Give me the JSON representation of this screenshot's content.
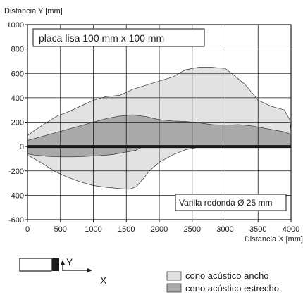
{
  "chart_data": {
    "type": "area",
    "title": "",
    "xlabel": "Distancia X [mm]",
    "ylabel": "Distancia Y [mm]",
    "xlim": [
      0,
      4000
    ],
    "ylim": [
      -600,
      1000
    ],
    "x_ticks": [
      0,
      500,
      1000,
      1500,
      2000,
      2500,
      3000,
      3500,
      4000
    ],
    "y_ticks": [
      -600,
      -400,
      -200,
      0,
      200,
      400,
      600,
      800,
      1000
    ],
    "grid": true,
    "annotations": {
      "target": "placa lisa 100 mm x 100 mm",
      "rod": "Varilla redonda Ø 25 mm"
    },
    "series": [
      {
        "name": "cono acústico ancho",
        "color": "#e2e2e2",
        "upper": [
          [
            0,
            90
          ],
          [
            100,
            130
          ],
          [
            300,
            200
          ],
          [
            450,
            250
          ],
          [
            600,
            280
          ],
          [
            800,
            330
          ],
          [
            1000,
            380
          ],
          [
            1200,
            410
          ],
          [
            1400,
            420
          ],
          [
            1600,
            470
          ],
          [
            1900,
            520
          ],
          [
            2200,
            570
          ],
          [
            2400,
            630
          ],
          [
            2600,
            650
          ],
          [
            2800,
            650
          ],
          [
            3000,
            640
          ],
          [
            3100,
            600
          ],
          [
            3300,
            510
          ],
          [
            3500,
            380
          ],
          [
            3700,
            330
          ],
          [
            3900,
            300
          ],
          [
            3980,
            220
          ],
          [
            4000,
            130
          ]
        ],
        "lower": [
          [
            0,
            -70
          ],
          [
            100,
            -100
          ],
          [
            200,
            -130
          ],
          [
            400,
            -200
          ],
          [
            600,
            -250
          ],
          [
            800,
            -290
          ],
          [
            1000,
            -320
          ],
          [
            1200,
            -335
          ],
          [
            1400,
            -345
          ],
          [
            1550,
            -350
          ],
          [
            1650,
            -330
          ],
          [
            1750,
            -270
          ],
          [
            1850,
            -200
          ],
          [
            2000,
            -130
          ],
          [
            2200,
            -70
          ],
          [
            2400,
            -25
          ],
          [
            2600,
            -5
          ],
          [
            2800,
            0
          ],
          [
            3000,
            0
          ],
          [
            3200,
            0
          ],
          [
            3500,
            0
          ],
          [
            3800,
            0
          ],
          [
            4000,
            0
          ]
        ]
      },
      {
        "name": "cono acústico estrecho",
        "color": "#a9a9a9",
        "upper": [
          [
            0,
            50
          ],
          [
            200,
            80
          ],
          [
            400,
            110
          ],
          [
            600,
            140
          ],
          [
            800,
            170
          ],
          [
            1000,
            200
          ],
          [
            1200,
            230
          ],
          [
            1400,
            250
          ],
          [
            1600,
            260
          ],
          [
            1800,
            245
          ],
          [
            2000,
            220
          ],
          [
            2200,
            210
          ],
          [
            2400,
            205
          ],
          [
            2600,
            195
          ],
          [
            2800,
            180
          ],
          [
            3000,
            175
          ],
          [
            3200,
            180
          ],
          [
            3400,
            170
          ],
          [
            3600,
            150
          ],
          [
            3800,
            130
          ],
          [
            3900,
            120
          ],
          [
            4000,
            100
          ]
        ],
        "lower": [
          [
            0,
            -60
          ],
          [
            100,
            -70
          ],
          [
            300,
            -80
          ],
          [
            500,
            -85
          ],
          [
            700,
            -85
          ],
          [
            900,
            -80
          ],
          [
            1100,
            -75
          ],
          [
            1300,
            -65
          ],
          [
            1450,
            -50
          ],
          [
            1550,
            -40
          ],
          [
            1650,
            -30
          ],
          [
            1750,
            0
          ],
          [
            4000,
            0
          ]
        ]
      }
    ],
    "legend": {
      "position": "bottom-right",
      "entries": [
        "cono acústico ancho",
        "cono acústico estrecho"
      ]
    },
    "sensor_diagram": {
      "x_axis": "X",
      "y_axis": "Y"
    }
  }
}
